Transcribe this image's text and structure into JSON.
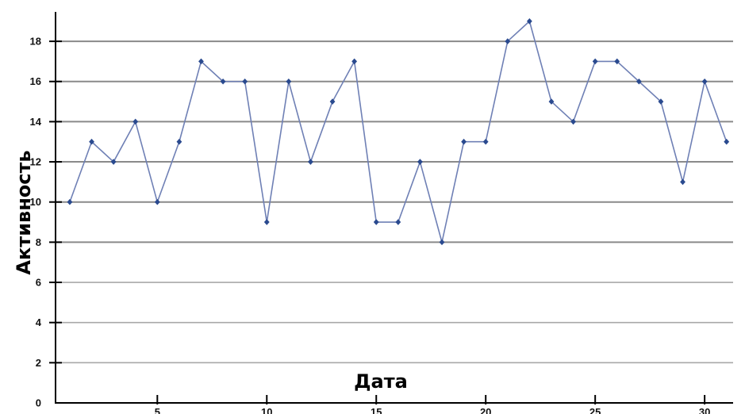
{
  "chart_data": {
    "type": "line",
    "title": "",
    "xlabel": "Дата",
    "ylabel": "Активность",
    "x": [
      1,
      2,
      3,
      4,
      5,
      6,
      7,
      8,
      9,
      10,
      11,
      12,
      13,
      14,
      15,
      16,
      17,
      18,
      19,
      20,
      21,
      22,
      23,
      24,
      25,
      26,
      27,
      28,
      29,
      30,
      31
    ],
    "series": [
      {
        "values": [
          10,
          13,
          12,
          14,
          10,
          13,
          17,
          16,
          16,
          9,
          16,
          12,
          15,
          17,
          9,
          9,
          12,
          8,
          13,
          13,
          18,
          19,
          15,
          14,
          17,
          17,
          16,
          15,
          11,
          16,
          13
        ],
        "color": "#6f80b5",
        "marker_color": "#2a4a8f"
      }
    ],
    "xticks": [
      "5",
      "10",
      "15",
      "20",
      "25",
      "30"
    ],
    "xtick_values": [
      5,
      10,
      15,
      20,
      25,
      30
    ],
    "yticks": [
      "0",
      "2",
      "4",
      "6",
      "8",
      "10",
      "12",
      "14",
      "16",
      "18"
    ],
    "ytick_values": [
      0,
      2,
      4,
      6,
      8,
      10,
      12,
      14,
      16,
      18
    ],
    "xlim": [
      0.35,
      31.3
    ],
    "ylim": [
      0,
      19.5
    ],
    "grid": true,
    "gridline_colors": {
      "major": "#8a8a8a",
      "minor": "#a8a8a8"
    }
  }
}
